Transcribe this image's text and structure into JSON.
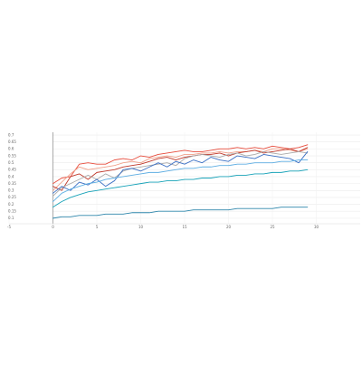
{
  "chart_data": {
    "type": "line",
    "title": "",
    "xlabel": "",
    "ylabel": "",
    "xlim": [
      -5,
      35
    ],
    "ylim": [
      0.06,
      0.72
    ],
    "x_ticks": [
      -5,
      0,
      5,
      10,
      15,
      20,
      25,
      30
    ],
    "y_ticks": [
      0.1,
      0.15,
      0.2,
      0.25,
      0.3,
      0.35,
      0.4,
      0.45,
      0.5,
      0.55,
      0.6,
      0.65,
      0.7
    ],
    "x_tick_labels": [
      "-5",
      "0",
      "5",
      "10",
      "15",
      "20",
      "25",
      "30"
    ],
    "y_tick_labels": [
      "0.1",
      "0.15",
      "0.2",
      "0.25",
      "0.3",
      "0.35",
      "0.4",
      "0.45",
      "0.5",
      "0.55",
      "0.6",
      "0.65",
      "0.7"
    ],
    "grid": true,
    "legend": "none",
    "x": [
      0,
      1,
      2,
      3,
      4,
      5,
      6,
      7,
      8,
      9,
      10,
      11,
      12,
      13,
      14,
      15,
      16,
      17,
      18,
      19,
      20,
      21,
      22,
      23,
      24,
      25,
      26,
      27,
      28,
      29
    ],
    "series": [
      {
        "color": "#e74c3c",
        "values": [
          0.35,
          0.39,
          0.4,
          0.49,
          0.5,
          0.49,
          0.49,
          0.52,
          0.53,
          0.52,
          0.55,
          0.54,
          0.56,
          0.57,
          0.58,
          0.59,
          0.58,
          0.58,
          0.59,
          0.6,
          0.6,
          0.61,
          0.6,
          0.61,
          0.6,
          0.62,
          0.61,
          0.6,
          0.61,
          0.63
        ]
      },
      {
        "color": "#f0a08a",
        "values": [
          0.3,
          0.36,
          0.42,
          0.47,
          0.45,
          0.46,
          0.47,
          0.48,
          0.5,
          0.51,
          0.5,
          0.53,
          0.54,
          0.55,
          0.54,
          0.56,
          0.56,
          0.57,
          0.57,
          0.58,
          0.57,
          0.58,
          0.58,
          0.59,
          0.58,
          0.6,
          0.6,
          0.59,
          0.58,
          0.6
        ]
      },
      {
        "color": "#c0392b",
        "values": [
          0.33,
          0.3,
          0.4,
          0.42,
          0.38,
          0.43,
          0.44,
          0.45,
          0.47,
          0.48,
          0.49,
          0.51,
          0.53,
          0.54,
          0.52,
          0.54,
          0.55,
          0.56,
          0.56,
          0.57,
          0.55,
          0.57,
          0.58,
          0.59,
          0.57,
          0.58,
          0.59,
          0.6,
          0.58,
          0.61
        ]
      },
      {
        "color": "#aaaaaa",
        "values": [
          0.26,
          0.32,
          0.35,
          0.38,
          0.41,
          0.38,
          0.42,
          0.39,
          0.44,
          0.46,
          0.47,
          0.48,
          0.49,
          0.5,
          0.48,
          0.53,
          0.55,
          0.56,
          0.55,
          0.54,
          0.56,
          0.57,
          0.55,
          0.56,
          0.58,
          0.57,
          0.56,
          0.57,
          0.58,
          0.57
        ]
      },
      {
        "color": "#3a6fc4",
        "values": [
          0.28,
          0.33,
          0.3,
          0.36,
          0.34,
          0.38,
          0.33,
          0.37,
          0.45,
          0.46,
          0.44,
          0.47,
          0.5,
          0.47,
          0.51,
          0.49,
          0.52,
          0.5,
          0.54,
          0.52,
          0.51,
          0.55,
          0.54,
          0.53,
          0.56,
          0.55,
          0.54,
          0.53,
          0.5,
          0.58
        ]
      },
      {
        "color": "#5dade2",
        "values": [
          0.22,
          0.28,
          0.31,
          0.33,
          0.35,
          0.36,
          0.38,
          0.39,
          0.4,
          0.41,
          0.42,
          0.43,
          0.43,
          0.44,
          0.45,
          0.46,
          0.46,
          0.47,
          0.47,
          0.48,
          0.48,
          0.49,
          0.49,
          0.5,
          0.5,
          0.5,
          0.51,
          0.51,
          0.52,
          0.52
        ]
      },
      {
        "color": "#17a2b8",
        "values": [
          0.18,
          0.22,
          0.25,
          0.27,
          0.29,
          0.3,
          0.31,
          0.32,
          0.33,
          0.34,
          0.35,
          0.36,
          0.36,
          0.37,
          0.37,
          0.38,
          0.38,
          0.39,
          0.39,
          0.4,
          0.4,
          0.41,
          0.41,
          0.42,
          0.42,
          0.43,
          0.43,
          0.44,
          0.44,
          0.45
        ]
      },
      {
        "color": "#2e86ab",
        "values": [
          0.1,
          0.11,
          0.11,
          0.12,
          0.12,
          0.12,
          0.13,
          0.13,
          0.13,
          0.14,
          0.14,
          0.14,
          0.15,
          0.15,
          0.15,
          0.15,
          0.16,
          0.16,
          0.16,
          0.16,
          0.16,
          0.17,
          0.17,
          0.17,
          0.17,
          0.17,
          0.18,
          0.18,
          0.18,
          0.18
        ]
      }
    ]
  }
}
